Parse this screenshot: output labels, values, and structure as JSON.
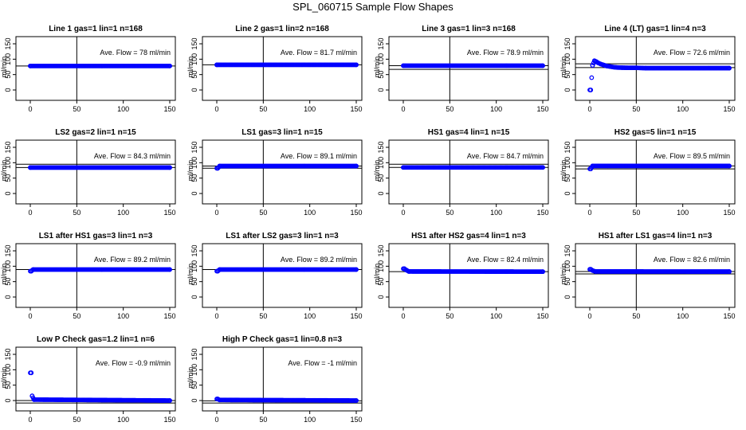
{
  "figure": {
    "title": "SPL_060715  Sample Flow Shapes",
    "point_color": "#0000ff"
  },
  "chart_data": [
    {
      "type": "scatter",
      "title": "Line 1 gas=1 lin=1 n=168",
      "ylabel": "ml/min",
      "xticks": [
        "0",
        "50",
        "100",
        "150"
      ],
      "yticks": [
        "0",
        "50",
        "100",
        "150"
      ],
      "xlim": [
        0,
        150
      ],
      "ylim": [
        0,
        150
      ],
      "vline_x": 50,
      "hlines": [
        78
      ],
      "annotation": "Ave. Flow =  78  ml/min",
      "series": [
        {
          "x": [
            0,
            150
          ],
          "y": [
            78,
            78
          ]
        }
      ]
    },
    {
      "type": "scatter",
      "title": "Line 2 gas=1 lin=2 n=168",
      "ylabel": "ml/min",
      "xticks": [
        "0",
        "50",
        "100",
        "150"
      ],
      "yticks": [
        "0",
        "50",
        "100",
        "150"
      ],
      "xlim": [
        0,
        150
      ],
      "ylim": [
        0,
        150
      ],
      "vline_x": 50,
      "hlines": [
        81.7
      ],
      "annotation": "Ave. Flow =  81.7  ml/min",
      "series": [
        {
          "x": [
            0,
            150
          ],
          "y": [
            81.7,
            81.7
          ]
        }
      ]
    },
    {
      "type": "scatter",
      "title": "Line 3 gas=1 lin=3 n=168",
      "ylabel": "ml/min",
      "xticks": [
        "0",
        "50",
        "100",
        "150"
      ],
      "yticks": [
        "0",
        "50",
        "100",
        "150"
      ],
      "xlim": [
        0,
        150
      ],
      "ylim": [
        0,
        150
      ],
      "vline_x": 50,
      "hlines": [
        78.9,
        67
      ],
      "annotation": "Ave. Flow =  78.9  ml/min",
      "series": [
        {
          "x": [
            0,
            150
          ],
          "y": [
            78.9,
            78.9
          ]
        }
      ]
    },
    {
      "type": "scatter",
      "title": "Line 4 (LT) gas=1 lin=4 n=3",
      "ylabel": "ml/min",
      "xticks": [
        "0",
        "50",
        "100",
        "150"
      ],
      "yticks": [
        "0",
        "50",
        "100",
        "150"
      ],
      "xlim": [
        0,
        150
      ],
      "ylim": [
        0,
        150
      ],
      "vline_x": 50,
      "hlines": [
        72.6,
        85
      ],
      "annotation": "Ave. Flow =  72.6  ml/min",
      "series": [
        {
          "x": [
            1,
            3,
            5,
            7,
            9,
            12,
            15,
            18,
            22,
            26,
            30,
            35,
            40,
            50,
            60,
            150
          ],
          "y": [
            0,
            80,
            95,
            92,
            88,
            84,
            81,
            78,
            76,
            74,
            73,
            72.5,
            72,
            72,
            71,
            71
          ]
        }
      ]
    },
    {
      "type": "scatter",
      "title": "LS2 gas=2 lin=1 n=15",
      "ylabel": "ml/min",
      "xticks": [
        "0",
        "50",
        "100",
        "150"
      ],
      "yticks": [
        "0",
        "50",
        "100",
        "150"
      ],
      "xlim": [
        0,
        150
      ],
      "ylim": [
        0,
        150
      ],
      "vline_x": 50,
      "hlines": [
        84.3,
        95
      ],
      "annotation": "Ave. Flow =  84.3  ml/min",
      "series": [
        {
          "x": [
            0,
            150
          ],
          "y": [
            84.3,
            84.3
          ]
        }
      ]
    },
    {
      "type": "scatter",
      "title": "LS1 gas=3 lin=1 n=15",
      "ylabel": "ml/min",
      "xticks": [
        "0",
        "50",
        "100",
        "150"
      ],
      "yticks": [
        "0",
        "50",
        "100",
        "150"
      ],
      "xlim": [
        0,
        150
      ],
      "ylim": [
        0,
        150
      ],
      "vline_x": 50,
      "hlines": [
        89.1,
        82
      ],
      "annotation": "Ave. Flow =  89.1  ml/min",
      "series": [
        {
          "x": [
            1,
            2,
            3,
            150
          ],
          "y": [
            82,
            85,
            89.1,
            89.1
          ]
        }
      ]
    },
    {
      "type": "scatter",
      "title": "HS1 gas=4 lin=1 n=15",
      "ylabel": "ml/min",
      "xticks": [
        "0",
        "50",
        "100",
        "150"
      ],
      "yticks": [
        "0",
        "50",
        "100",
        "150"
      ],
      "xlim": [
        0,
        150
      ],
      "ylim": [
        0,
        150
      ],
      "vline_x": 50,
      "hlines": [
        84.7,
        95
      ],
      "annotation": "Ave. Flow =  84.7  ml/min",
      "series": [
        {
          "x": [
            0,
            150
          ],
          "y": [
            84.7,
            84.7
          ]
        }
      ]
    },
    {
      "type": "scatter",
      "title": "HS2 gas=5 lin=1 n=15",
      "ylabel": "ml/min",
      "xticks": [
        "0",
        "50",
        "100",
        "150"
      ],
      "yticks": [
        "0",
        "50",
        "100",
        "150"
      ],
      "xlim": [
        0,
        150
      ],
      "ylim": [
        0,
        150
      ],
      "vline_x": 50,
      "hlines": [
        89.5,
        80
      ],
      "annotation": "Ave. Flow =  89.5  ml/min",
      "series": [
        {
          "x": [
            1,
            2,
            3,
            150
          ],
          "y": [
            80,
            85,
            89.5,
            89.5
          ]
        }
      ]
    },
    {
      "type": "scatter",
      "title": "LS1 after HS1 gas=3 lin=1 n=3",
      "ylabel": "ml/min",
      "xticks": [
        "0",
        "50",
        "100",
        "150"
      ],
      "yticks": [
        "0",
        "50",
        "100",
        "150"
      ],
      "xlim": [
        0,
        150
      ],
      "ylim": [
        0,
        150
      ],
      "vline_x": 50,
      "hlines": [
        89.2
      ],
      "annotation": "Ave. Flow =  89.2  ml/min",
      "series": [
        {
          "x": [
            1,
            3,
            150
          ],
          "y": [
            84,
            89.2,
            89.2
          ]
        }
      ]
    },
    {
      "type": "scatter",
      "title": "LS1 after LS2 gas=3 lin=1 n=3",
      "ylabel": "ml/min",
      "xticks": [
        "0",
        "50",
        "100",
        "150"
      ],
      "yticks": [
        "0",
        "50",
        "100",
        "150"
      ],
      "xlim": [
        0,
        150
      ],
      "ylim": [
        0,
        150
      ],
      "vline_x": 50,
      "hlines": [
        89.2
      ],
      "annotation": "Ave. Flow =  89.2  ml/min",
      "series": [
        {
          "x": [
            1,
            3,
            150
          ],
          "y": [
            84,
            89.2,
            89.2
          ]
        }
      ]
    },
    {
      "type": "scatter",
      "title": "HS1 after HS2 gas=4 lin=1 n=3",
      "ylabel": "ml/min",
      "xticks": [
        "0",
        "50",
        "100",
        "150"
      ],
      "yticks": [
        "0",
        "50",
        "100",
        "150"
      ],
      "xlim": [
        0,
        150
      ],
      "ylim": [
        0,
        150
      ],
      "vline_x": 50,
      "hlines": [
        82.4
      ],
      "annotation": "Ave. Flow =  82.4  ml/min",
      "series": [
        {
          "x": [
            1,
            3,
            6,
            150
          ],
          "y": [
            92,
            88,
            83,
            82.4
          ]
        }
      ]
    },
    {
      "type": "scatter",
      "title": "HS1 after LS1 gas=4 lin=1 n=3",
      "ylabel": "ml/min",
      "xticks": [
        "0",
        "50",
        "100",
        "150"
      ],
      "yticks": [
        "0",
        "50",
        "100",
        "150"
      ],
      "xlim": [
        0,
        150
      ],
      "ylim": [
        0,
        150
      ],
      "vline_x": 50,
      "hlines": [
        82.6,
        75
      ],
      "annotation": "Ave. Flow =  82.6  ml/min",
      "series": [
        {
          "x": [
            1,
            3,
            6,
            150
          ],
          "y": [
            90,
            86,
            83,
            82.6
          ]
        }
      ]
    },
    {
      "type": "scatter",
      "title": "Low P Check gas=1.2 lin=1 n=6",
      "ylabel": "ml/min",
      "xticks": [
        "0",
        "50",
        "100",
        "150"
      ],
      "yticks": [
        "0",
        "50",
        "100",
        "150"
      ],
      "xlim": [
        0,
        150
      ],
      "ylim": [
        0,
        150
      ],
      "vline_x": 50,
      "hlines": [
        0,
        -8
      ],
      "annotation": "Ave. Flow =  -0.9  ml/min",
      "series": [
        {
          "x": [
            1,
            2,
            4,
            150
          ],
          "y": [
            90,
            15,
            3,
            0
          ]
        }
      ]
    },
    {
      "type": "scatter",
      "title": "High P Check gas=1 lin=0.8 n=3",
      "ylabel": "ml/min",
      "xticks": [
        "0",
        "50",
        "100",
        "150"
      ],
      "yticks": [
        "0",
        "50",
        "100",
        "150"
      ],
      "xlim": [
        0,
        150
      ],
      "ylim": [
        0,
        150
      ],
      "vline_x": 50,
      "hlines": [
        -1,
        -8
      ],
      "annotation": "Ave. Flow =  -1  ml/min",
      "series": [
        {
          "x": [
            1,
            3,
            150
          ],
          "y": [
            5,
            2,
            0
          ]
        }
      ]
    }
  ]
}
